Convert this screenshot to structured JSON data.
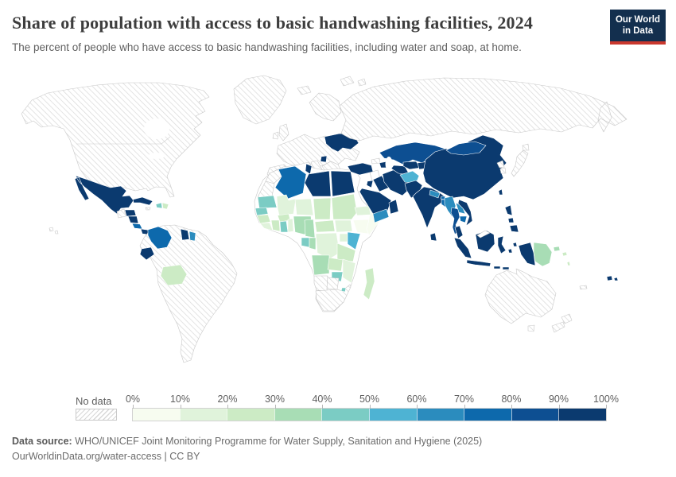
{
  "header": {
    "title": "Share of population with access to basic handwashing facilities, 2024",
    "subtitle": "The percent of people who have access to basic handwashing facilities, including water and soap, at home.",
    "logo_line1": "Our World",
    "logo_line2": "in Data",
    "logo_bg": "#132f4e",
    "logo_accent": "#c9382e"
  },
  "footer": {
    "source_label": "Data source:",
    "source_text": " WHO/UNICEF Joint Monitoring Programme for Water Supply, Sanitation and Hygiene (2025)",
    "license_text": "OurWorldinData.org/water-access | CC BY"
  },
  "chart_data": {
    "type": "heatmap",
    "subtype": "choropleth-world-map",
    "title": "Share of population with access to basic handwashing facilities, 2024",
    "unit": "%",
    "legend_tick_labels": [
      "0%",
      "10%",
      "20%",
      "30%",
      "40%",
      "50%",
      "60%",
      "70%",
      "80%",
      "90%",
      "100%"
    ],
    "bin_labels": [
      "0-10%",
      "10-20%",
      "20-30%",
      "30-40%",
      "40-50%",
      "50-60%",
      "60-70%",
      "70-80%",
      "80-90%",
      "90-100%"
    ],
    "bin_colors": [
      "#f7fcf0",
      "#e0f3db",
      "#ccebc5",
      "#a8ddb5",
      "#7bccc4",
      "#4eb3d3",
      "#2b8cbe",
      "#0d69ac",
      "#0d4f92",
      "#0b3a6f"
    ],
    "no_data": {
      "label": "No data",
      "style": "diagonal-hatch"
    },
    "ocean_color": "#ffffff",
    "country_bins": {
      "canada-usa": "nd",
      "greenland": "nd",
      "hawaii": "nd",
      "svalbard": "nd",
      "mexico": 9,
      "guatemala": "nd",
      "honduras": 9,
      "nicaragua": 9,
      "costa-rica": 7,
      "panama": 9,
      "cuba": 9,
      "jamaica": "nd",
      "haiti": 4,
      "dominican-republic": 2,
      "south-america": "nd",
      "colombia": 7,
      "ecuador": 9,
      "guyana": 9,
      "suriname": 6,
      "bolivia": 2,
      "iceland": "nd",
      "uk": "nd",
      "ireland": "nd",
      "scandinavia": "nd",
      "europe-mainland": "nd",
      "iberia": "nd",
      "italy": "nd",
      "balkans-greece": "nd",
      "ukraine": 9,
      "serbia": 9,
      "russia": "nd",
      "africa-base": "blank",
      "morocco": "nd",
      "western-sahara": "nd",
      "algeria": 7,
      "tunisia": 9,
      "libya": 9,
      "egypt": 9,
      "mauritania": 4,
      "mali": 1,
      "niger": 1,
      "chad": 2,
      "sudan": 2,
      "senegal": 4,
      "guinea": 2,
      "sierra-leone": 1,
      "cote-divoire": 2,
      "burkina-faso": 2,
      "ghana": 4,
      "togo-benin": 1,
      "nigeria": 3,
      "cameroon": 3,
      "car": 2,
      "south-sudan": 1,
      "ethiopia": 0,
      "somalia": 0,
      "eritrea-djibouti": 1,
      "gabon": 4,
      "congo": 3,
      "drc": 1,
      "uganda": 1,
      "kenya": 5,
      "tanzania": 2,
      "angola": 3,
      "zambia": 2,
      "malawi-mozambique": 1,
      "zimbabwe": 4,
      "eswatini": 4,
      "namibia": "nd",
      "botswana": "nd",
      "south-africa": "nd",
      "madagascar": 2,
      "turkey": 9,
      "syria": "blank",
      "jordan": 9,
      "iraq": 9,
      "saudi-arabia": 9,
      "yemen": 6,
      "oman": 9,
      "iran": 9,
      "azerbaijan": 9,
      "georgia": "nd",
      "kazakhstan": 8,
      "turkmenistan": 9,
      "uzbekistan": 9,
      "kyrgyzstan-tajikistan": 9,
      "afghanistan": 5,
      "pakistan": 9,
      "india": 9,
      "nepal": 6,
      "bhutan": 7,
      "bangladesh": 7,
      "sri-lanka": 9,
      "china": 9,
      "mongolia": 8,
      "north-korea": "nd",
      "south-korea": "nd",
      "japan": "nd",
      "taiwan": 9,
      "myanmar": 6,
      "thailand": 8,
      "laos": 6,
      "cambodia": 7,
      "vietnam": 9,
      "malaysia": 9,
      "east-malaysia": "blank",
      "indonesia": 9,
      "philippines": 9,
      "papua-new-guinea": 3,
      "solomon-islands": 2,
      "vanuatu": 2,
      "fiji": 9,
      "australia": "nd",
      "new-zealand": "nd",
      "new-caledonia": "nd"
    }
  }
}
